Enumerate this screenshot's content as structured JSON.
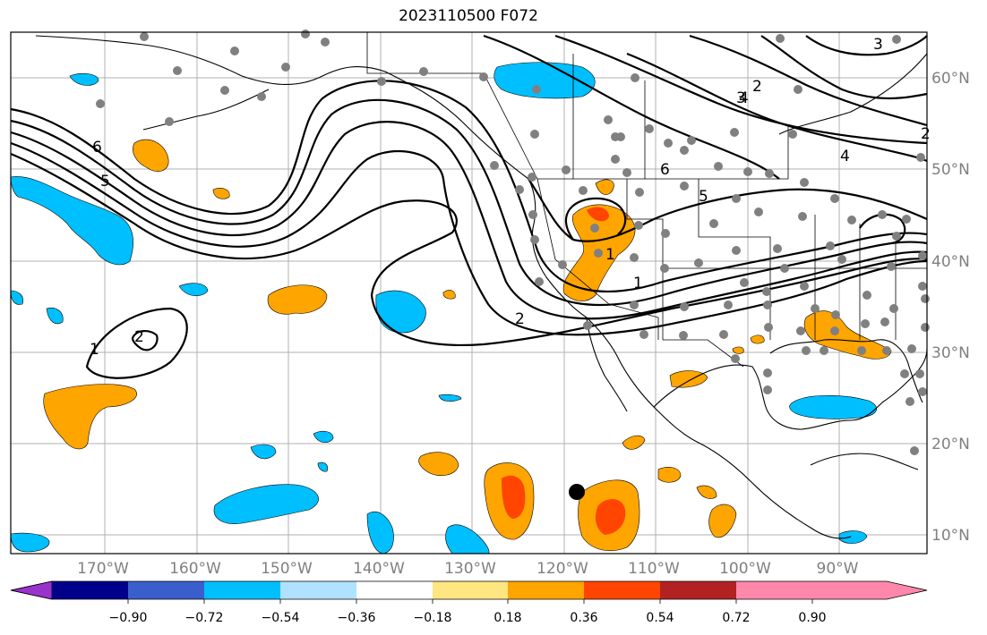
{
  "title": "2023110500 F072",
  "map": {
    "lon_labels": [
      "170°W",
      "160°W",
      "150°W",
      "140°W",
      "130°W",
      "120°W",
      "110°W",
      "100°W",
      "90°W"
    ],
    "lat_labels": [
      "60°N",
      "50°N",
      "40°N",
      "30°N",
      "20°N",
      "10°N"
    ],
    "contour_labels": [
      "6",
      "5",
      "4",
      "3",
      "2",
      "1",
      "2",
      "1",
      "2",
      "3",
      "4",
      "5",
      "6",
      "1",
      "2"
    ]
  },
  "colorbar": {
    "ticks": [
      "−0.90",
      "−0.72",
      "−0.54",
      "−0.36",
      "−0.18",
      "0.18",
      "0.36",
      "0.54",
      "0.72",
      "0.90"
    ],
    "colors": [
      "#9933cc",
      "#00008b",
      "#3a5fcd",
      "#00bfff",
      "#b0e2ff",
      "#ffffff",
      "#ffe680",
      "#ffa500",
      "#ff4500",
      "#b22222",
      "#ff88aa"
    ]
  },
  "colors": {
    "positive_light": "#ffa500",
    "positive_strong": "#ff4500",
    "negative": "#00bfff",
    "station": "#808080"
  }
}
